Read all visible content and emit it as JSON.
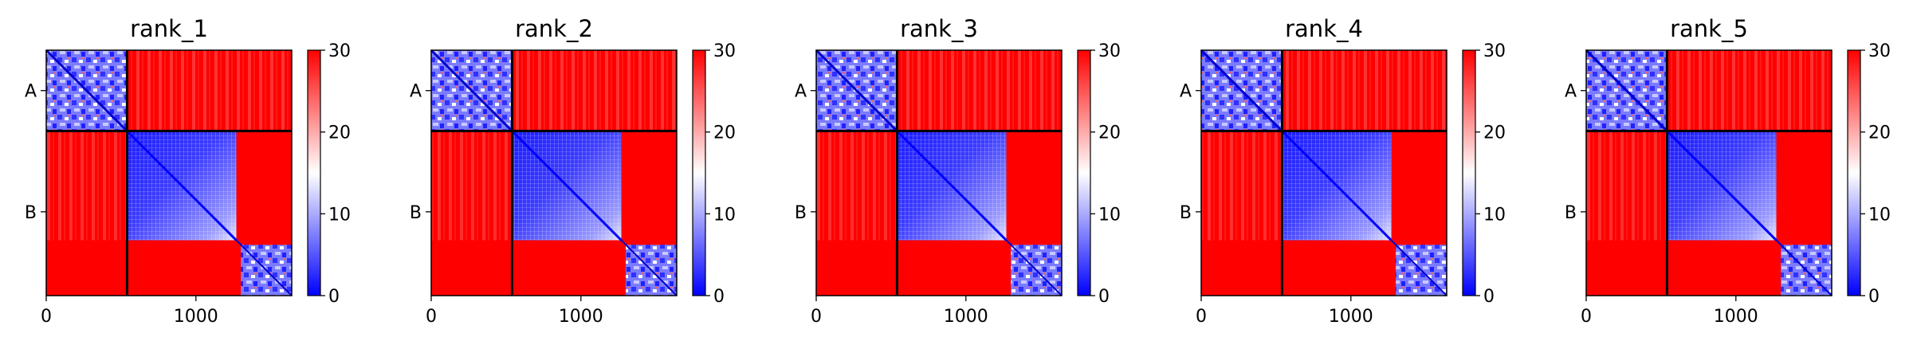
{
  "chart_data": [
    {
      "type": "heatmap",
      "title": "rank_1",
      "ytick_labels": [
        "A",
        "B"
      ],
      "xticks": [
        0,
        1000
      ],
      "xlim": [
        0,
        1640
      ],
      "ylim": [
        1640,
        0
      ],
      "chain_break": 540,
      "colorbar": {
        "min": 0,
        "max": 30,
        "ticks": [
          0,
          10,
          20,
          30
        ],
        "colormap": "bwr"
      }
    },
    {
      "type": "heatmap",
      "title": "rank_2",
      "ytick_labels": [
        "A",
        "B"
      ],
      "xticks": [
        0,
        1000
      ],
      "xlim": [
        0,
        1640
      ],
      "ylim": [
        1640,
        0
      ],
      "chain_break": 540,
      "colorbar": {
        "min": 0,
        "max": 30,
        "ticks": [
          0,
          10,
          20,
          30
        ],
        "colormap": "bwr"
      }
    },
    {
      "type": "heatmap",
      "title": "rank_3",
      "ytick_labels": [
        "A",
        "B"
      ],
      "xticks": [
        0,
        1000
      ],
      "xlim": [
        0,
        1640
      ],
      "ylim": [
        1640,
        0
      ],
      "chain_break": 540,
      "colorbar": {
        "min": 0,
        "max": 30,
        "ticks": [
          0,
          10,
          20,
          30
        ],
        "colormap": "bwr"
      }
    },
    {
      "type": "heatmap",
      "title": "rank_4",
      "ytick_labels": [
        "A",
        "B"
      ],
      "xticks": [
        0,
        1000
      ],
      "xlim": [
        0,
        1640
      ],
      "ylim": [
        1640,
        0
      ],
      "chain_break": 540,
      "colorbar": {
        "min": 0,
        "max": 30,
        "ticks": [
          0,
          10,
          20,
          30
        ],
        "colormap": "bwr"
      }
    },
    {
      "type": "heatmap",
      "title": "rank_5",
      "ytick_labels": [
        "A",
        "B"
      ],
      "xticks": [
        0,
        1000
      ],
      "xlim": [
        0,
        1640
      ],
      "ylim": [
        1640,
        0
      ],
      "chain_break": 540,
      "colorbar": {
        "min": 0,
        "max": 30,
        "ticks": [
          0,
          10,
          20,
          30
        ],
        "colormap": "bwr"
      }
    }
  ],
  "colors": {
    "low": "#0000ff",
    "mid": "#ffffff",
    "high": "#ff0000",
    "frame": "#000000"
  }
}
